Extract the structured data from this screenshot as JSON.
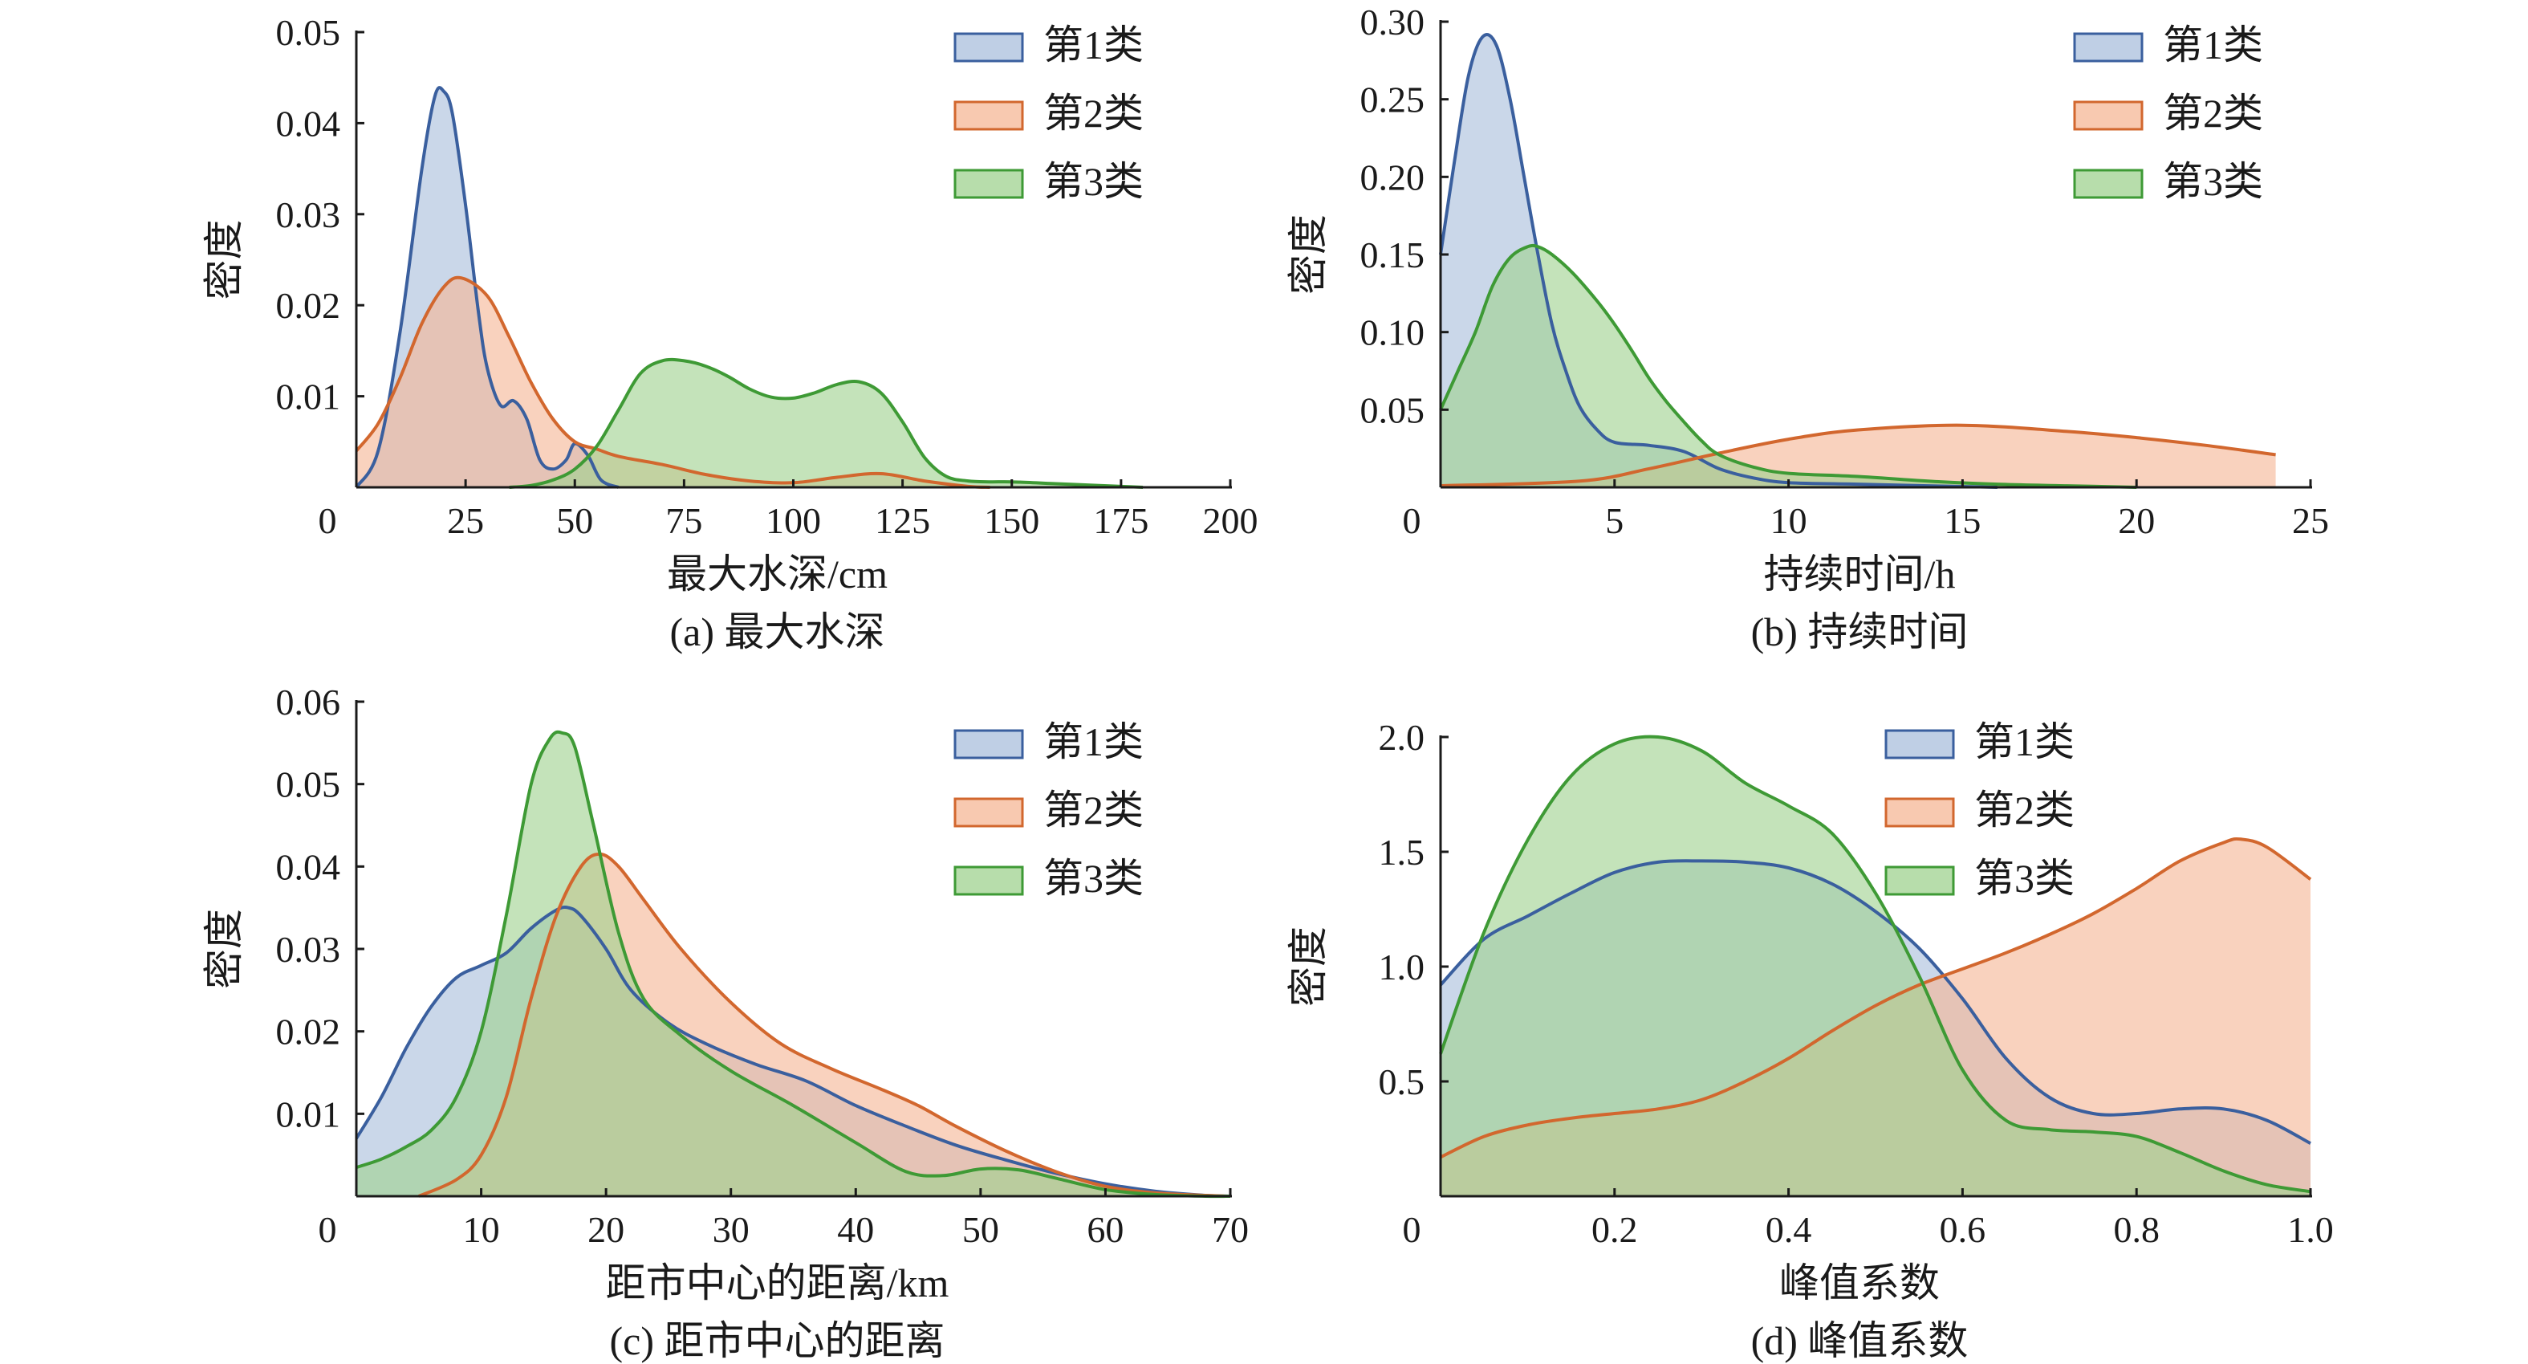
{
  "colors": {
    "series1_line": "#3a5f9e",
    "series1_fill": "#a9bfdc",
    "series2_line": "#d2672e",
    "series2_fill": "#f5b796",
    "series3_line": "#3e9a35",
    "series3_fill": "#9fd28f"
  },
  "chart_data": [
    {
      "id": "a",
      "type": "area",
      "caption": "(a) 最大水深",
      "xlabel": "最大水深/cm",
      "ylabel": "密度",
      "xlim": [
        0,
        200
      ],
      "ylim": [
        0,
        0.05
      ],
      "xticks": [
        0,
        25,
        50,
        75,
        100,
        125,
        150,
        175,
        200
      ],
      "xtick_labels": [
        "0",
        "25",
        "50",
        "75",
        "100",
        "125",
        "150",
        "175",
        "200"
      ],
      "yticks": [
        0.01,
        0.02,
        0.03,
        0.04,
        0.05
      ],
      "ytick_labels": [
        "0.01",
        "0.02",
        "0.03",
        "0.04",
        "0.05"
      ],
      "legend_position": "top-right",
      "series": [
        {
          "name": "第1类",
          "x": [
            0,
            5,
            10,
            15,
            18,
            20,
            22,
            25,
            28,
            30,
            33,
            36,
            39,
            42,
            45,
            48,
            50,
            53,
            56,
            60
          ],
          "y": [
            0.0,
            0.004,
            0.017,
            0.035,
            0.043,
            0.0435,
            0.041,
            0.031,
            0.019,
            0.013,
            0.009,
            0.0095,
            0.0075,
            0.003,
            0.002,
            0.003,
            0.0048,
            0.0035,
            0.0008,
            0.0
          ]
        },
        {
          "name": "第2类",
          "x": [
            0,
            5,
            10,
            15,
            20,
            24,
            30,
            35,
            40,
            45,
            50,
            55,
            60,
            70,
            80,
            90,
            100,
            110,
            120,
            130,
            140,
            145
          ],
          "y": [
            0.004,
            0.007,
            0.012,
            0.018,
            0.022,
            0.023,
            0.021,
            0.0165,
            0.0115,
            0.0075,
            0.005,
            0.0042,
            0.0034,
            0.0025,
            0.0014,
            0.0007,
            0.0005,
            0.0011,
            0.0015,
            0.0007,
            0.0001,
            0.0
          ]
        },
        {
          "name": "第3类",
          "x": [
            35,
            40,
            45,
            50,
            55,
            60,
            65,
            70,
            75,
            80,
            85,
            90,
            95,
            100,
            105,
            110,
            115,
            120,
            125,
            130,
            135,
            140,
            145,
            150,
            160,
            170,
            175,
            180
          ],
          "y": [
            0.0,
            0.0002,
            0.0008,
            0.002,
            0.0045,
            0.0085,
            0.0125,
            0.0139,
            0.0139,
            0.0133,
            0.0122,
            0.0108,
            0.0099,
            0.0098,
            0.0104,
            0.0113,
            0.0116,
            0.0104,
            0.0072,
            0.0033,
            0.0012,
            0.0007,
            0.0006,
            0.0006,
            0.0004,
            0.0002,
            0.0001,
            0.0
          ]
        }
      ]
    },
    {
      "id": "b",
      "type": "area",
      "caption": "(b) 持续时间",
      "xlabel": "持续时间/h",
      "ylabel": "密度",
      "xlim": [
        0,
        25
      ],
      "ylim": [
        0,
        0.3
      ],
      "xticks": [
        0,
        5,
        10,
        15,
        20,
        25
      ],
      "xtick_labels": [
        "0",
        "5",
        "10",
        "15",
        "20",
        "25"
      ],
      "yticks": [
        0.05,
        0.1,
        0.15,
        0.2,
        0.25,
        0.3
      ],
      "ytick_labels": [
        "0.05",
        "0.10",
        "0.15",
        "0.20",
        "0.25",
        "0.30"
      ],
      "legend_position": "top-right",
      "series": [
        {
          "name": "第1类",
          "x": [
            0,
            0.4,
            0.8,
            1.2,
            1.6,
            2.0,
            2.4,
            2.8,
            3.2,
            3.6,
            4.0,
            4.5,
            5.0,
            6.0,
            7.0,
            8.0,
            9.0,
            10.0,
            12.0,
            14.0,
            16.0
          ],
          "y": [
            0.15,
            0.21,
            0.265,
            0.29,
            0.285,
            0.25,
            0.2,
            0.15,
            0.105,
            0.075,
            0.052,
            0.037,
            0.029,
            0.027,
            0.023,
            0.012,
            0.006,
            0.003,
            0.002,
            0.001,
            0.0
          ]
        },
        {
          "name": "第2类",
          "x": [
            0,
            4,
            6,
            8,
            10,
            12,
            15,
            18,
            20,
            22,
            24
          ],
          "y": [
            0.001,
            0.004,
            0.012,
            0.022,
            0.031,
            0.037,
            0.04,
            0.036,
            0.032,
            0.027,
            0.021
          ]
        },
        {
          "name": "第3类",
          "x": [
            0,
            0.5,
            1.0,
            1.5,
            2.0,
            2.5,
            2.8,
            3.2,
            3.8,
            4.5,
            5.0,
            5.5,
            6.0,
            6.5,
            7.0,
            7.5,
            8.0,
            9.0,
            10.0,
            12.0,
            14.0,
            16.0,
            18.0,
            20.0
          ],
          "y": [
            0.05,
            0.075,
            0.1,
            0.13,
            0.148,
            0.155,
            0.155,
            0.15,
            0.138,
            0.12,
            0.105,
            0.088,
            0.07,
            0.055,
            0.042,
            0.03,
            0.021,
            0.013,
            0.009,
            0.007,
            0.004,
            0.002,
            0.001,
            0.0
          ]
        }
      ]
    },
    {
      "id": "c",
      "type": "area",
      "caption": "(c) 距市中心的距离",
      "xlabel": "距市中心的距离/km",
      "ylabel": "密度",
      "xlim": [
        0,
        70
      ],
      "ylim": [
        0,
        0.06
      ],
      "xticks": [
        0,
        10,
        20,
        30,
        40,
        50,
        60,
        70
      ],
      "xtick_labels": [
        "0",
        "10",
        "20",
        "30",
        "40",
        "50",
        "60",
        "70"
      ],
      "yticks": [
        0.01,
        0.02,
        0.03,
        0.04,
        0.05,
        0.06
      ],
      "ytick_labels": [
        "0.01",
        "0.02",
        "0.03",
        "0.04",
        "0.05",
        "0.06"
      ],
      "legend_position": "top-right",
      "series": [
        {
          "name": "第1类",
          "x": [
            0,
            2,
            4,
            6,
            8,
            10,
            12,
            14,
            16,
            17,
            18,
            20,
            22,
            25,
            28,
            32,
            36,
            40,
            44,
            48,
            52,
            56,
            60,
            64,
            68,
            70
          ],
          "y": [
            0.007,
            0.012,
            0.018,
            0.023,
            0.0265,
            0.028,
            0.0295,
            0.0325,
            0.0347,
            0.035,
            0.034,
            0.03,
            0.025,
            0.021,
            0.0185,
            0.016,
            0.014,
            0.011,
            0.0085,
            0.0062,
            0.0044,
            0.0028,
            0.0015,
            0.0006,
            0.0001,
            0.0
          ]
        },
        {
          "name": "第2类",
          "x": [
            5,
            8,
            10,
            12,
            14,
            16,
            18,
            19.5,
            21,
            23,
            26,
            30,
            34,
            38,
            42,
            45,
            48,
            52,
            56,
            60,
            64,
            68,
            70
          ],
          "y": [
            0.0,
            0.002,
            0.005,
            0.012,
            0.024,
            0.034,
            0.04,
            0.0415,
            0.04,
            0.036,
            0.03,
            0.0235,
            0.0185,
            0.0155,
            0.013,
            0.011,
            0.0085,
            0.0055,
            0.003,
            0.0012,
            0.0004,
            0.0001,
            0.0
          ]
        },
        {
          "name": "第3类",
          "x": [
            0,
            2,
            4,
            6,
            8,
            10,
            12,
            14,
            15.5,
            16.5,
            17.5,
            19,
            21,
            23,
            26,
            30,
            35,
            40,
            44,
            47,
            50,
            53,
            56,
            60,
            64,
            68,
            70
          ],
          "y": [
            0.0035,
            0.0045,
            0.006,
            0.008,
            0.012,
            0.02,
            0.034,
            0.05,
            0.0555,
            0.0562,
            0.0545,
            0.045,
            0.032,
            0.024,
            0.0195,
            0.0152,
            0.011,
            0.0065,
            0.003,
            0.0025,
            0.0033,
            0.0032,
            0.0022,
            0.0008,
            0.0002,
            0.0,
            0.0
          ]
        }
      ]
    },
    {
      "id": "d",
      "type": "area",
      "caption": "(d) 峰值系数",
      "xlabel": "峰值系数",
      "ylabel": "密度",
      "xlim": [
        0,
        1.0
      ],
      "ylim": [
        0,
        2.0
      ],
      "xticks": [
        0,
        0.2,
        0.4,
        0.6,
        0.8,
        1.0
      ],
      "xtick_labels": [
        "0",
        "0.2",
        "0.4",
        "0.6",
        "0.8",
        "1.0"
      ],
      "yticks": [
        0.5,
        1.0,
        1.5,
        2.0
      ],
      "ytick_labels": [
        "0.5",
        "1.0",
        "1.5",
        "2.0"
      ],
      "legend_position": "top-center",
      "series": [
        {
          "name": "第1类",
          "x": [
            0,
            0.05,
            0.1,
            0.15,
            0.2,
            0.25,
            0.3,
            0.35,
            0.4,
            0.45,
            0.5,
            0.55,
            0.6,
            0.65,
            0.7,
            0.75,
            0.8,
            0.85,
            0.9,
            0.95,
            1.0
          ],
          "y": [
            0.92,
            1.12,
            1.22,
            1.32,
            1.41,
            1.455,
            1.46,
            1.455,
            1.43,
            1.36,
            1.24,
            1.08,
            0.86,
            0.6,
            0.43,
            0.36,
            0.36,
            0.38,
            0.38,
            0.33,
            0.23
          ]
        },
        {
          "name": "第2类",
          "x": [
            0,
            0.05,
            0.1,
            0.15,
            0.2,
            0.25,
            0.3,
            0.35,
            0.4,
            0.45,
            0.5,
            0.55,
            0.6,
            0.65,
            0.7,
            0.75,
            0.8,
            0.85,
            0.9,
            0.92,
            0.95,
            1.0
          ],
          "y": [
            0.17,
            0.26,
            0.31,
            0.34,
            0.36,
            0.38,
            0.42,
            0.5,
            0.6,
            0.72,
            0.83,
            0.92,
            0.99,
            1.06,
            1.14,
            1.23,
            1.34,
            1.46,
            1.54,
            1.555,
            1.52,
            1.38
          ]
        },
        {
          "name": "第3类",
          "x": [
            0,
            0.05,
            0.1,
            0.15,
            0.2,
            0.25,
            0.3,
            0.35,
            0.4,
            0.45,
            0.5,
            0.55,
            0.6,
            0.65,
            0.7,
            0.75,
            0.8,
            0.85,
            0.9,
            0.95,
            1.0
          ],
          "y": [
            0.62,
            1.15,
            1.55,
            1.83,
            1.97,
            2.0,
            1.94,
            1.8,
            1.7,
            1.58,
            1.32,
            0.96,
            0.55,
            0.33,
            0.29,
            0.28,
            0.26,
            0.19,
            0.11,
            0.05,
            0.02
          ]
        }
      ]
    }
  ]
}
